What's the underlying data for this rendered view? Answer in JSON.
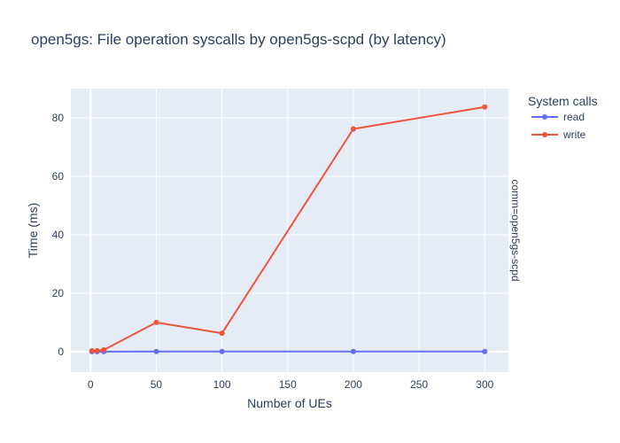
{
  "chart_data": {
    "type": "line",
    "title": "open5gs: File operation syscalls by open5gs-scpd (by latency)",
    "xlabel": "Number of UEs",
    "ylabel": "Time (ms)",
    "xlim": [
      -15,
      318
    ],
    "ylim": [
      -7,
      90
    ],
    "xticks": [
      0,
      50,
      100,
      150,
      200,
      250,
      300
    ],
    "yticks": [
      0,
      20,
      40,
      60,
      80
    ],
    "legend_title": "System calls",
    "legend_position": "top-right",
    "facet_label": "comm=open5gs-scpd",
    "grid": true,
    "colors": {
      "plot_bg": "#e5ecf6",
      "grid": "#ffffff",
      "read": "#636efa",
      "write": "#ef553b"
    },
    "series": [
      {
        "name": "read",
        "x": [
          1,
          5,
          10,
          50,
          100,
          200,
          300
        ],
        "y": [
          0.02,
          0.02,
          0.02,
          0.03,
          0.03,
          0.05,
          0.05
        ]
      },
      {
        "name": "write",
        "x": [
          1,
          5,
          10,
          50,
          100,
          200,
          300
        ],
        "y": [
          0.3,
          0.3,
          0.6,
          10.0,
          6.3,
          76.2,
          83.7
        ]
      }
    ]
  }
}
